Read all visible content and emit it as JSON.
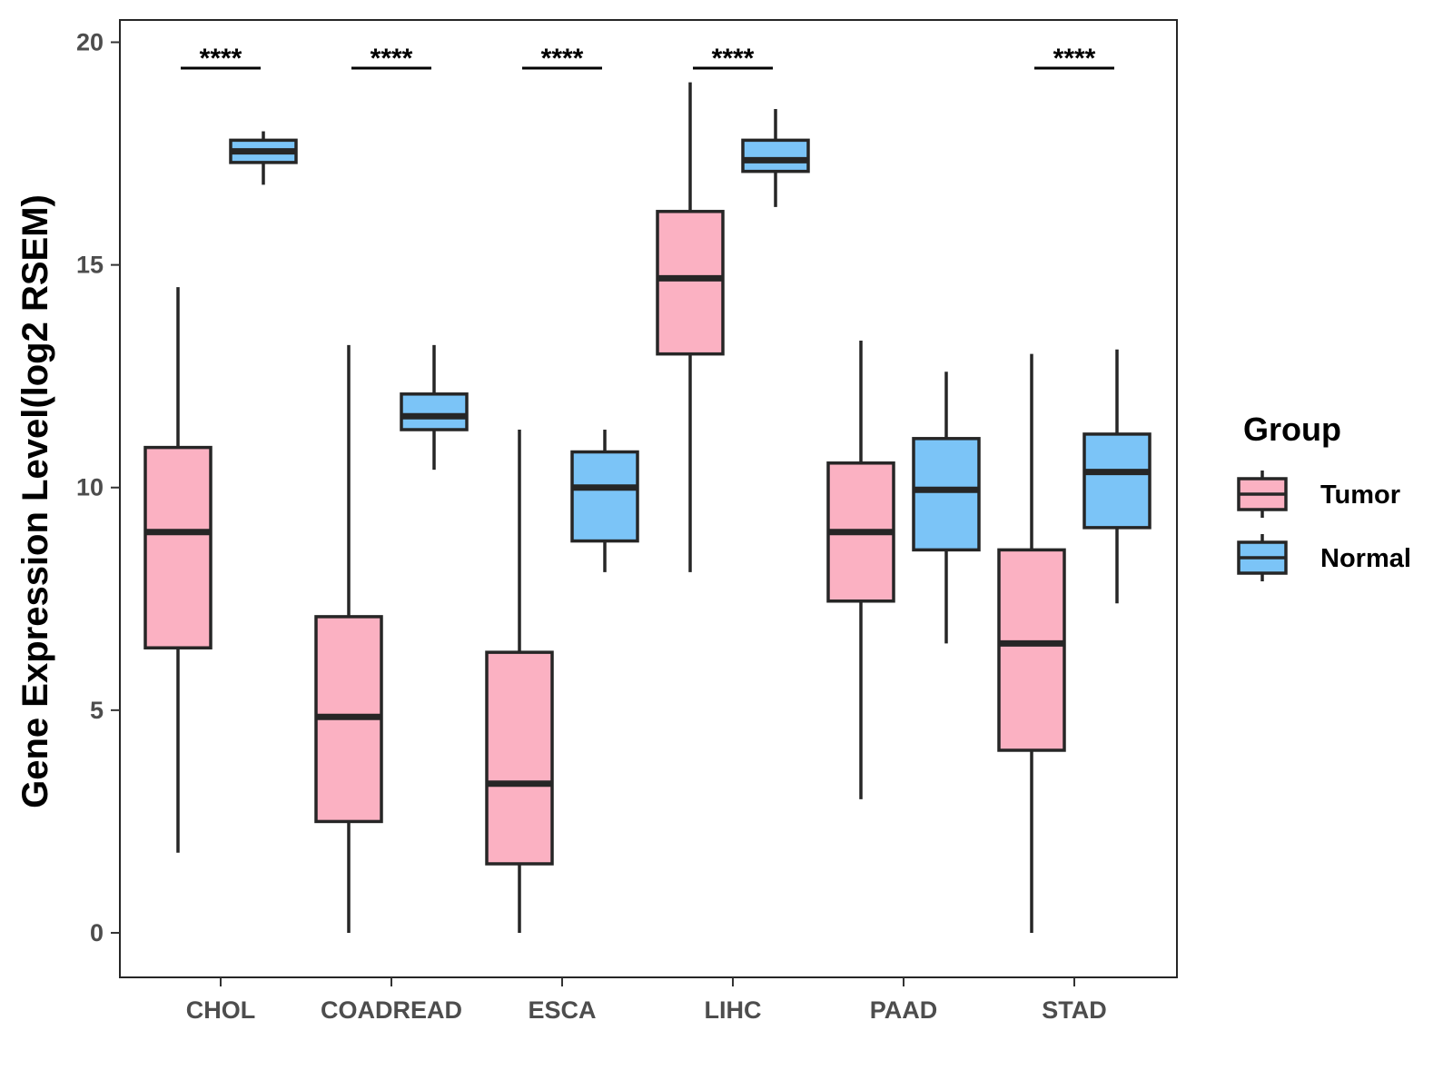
{
  "chart_data": {
    "type": "boxplot",
    "title": "",
    "xlabel": "",
    "ylabel": "Gene Expression Level(log2 RSEM)",
    "ylim": [
      -1,
      20.5
    ],
    "yticks": [
      0,
      5,
      10,
      15,
      20
    ],
    "categories": [
      "CHOL",
      "COADREAD",
      "ESCA",
      "LIHC",
      "PAAD",
      "STAD"
    ],
    "series": [
      {
        "name": "Tumor",
        "color": "#FBB1C2",
        "boxes": [
          {
            "min": 1.8,
            "q1": 6.4,
            "median": 9.0,
            "q3": 10.9,
            "max": 14.5
          },
          {
            "min": 0.0,
            "q1": 2.5,
            "median": 4.85,
            "q3": 7.1,
            "max": 13.2
          },
          {
            "min": 0.0,
            "q1": 1.55,
            "median": 3.35,
            "q3": 6.3,
            "max": 11.3
          },
          {
            "min": 8.1,
            "q1": 13.0,
            "median": 14.7,
            "q3": 16.2,
            "max": 19.1
          },
          {
            "min": 3.0,
            "q1": 7.45,
            "median": 9.0,
            "q3": 10.55,
            "max": 13.3
          },
          {
            "min": 0.0,
            "q1": 4.1,
            "median": 6.5,
            "q3": 8.6,
            "max": 13.0
          }
        ]
      },
      {
        "name": "Normal",
        "color": "#7BC4F7",
        "boxes": [
          {
            "min": 16.8,
            "q1": 17.3,
            "median": 17.55,
            "q3": 17.8,
            "max": 18.0
          },
          {
            "min": 10.4,
            "q1": 11.3,
            "median": 11.6,
            "q3": 12.1,
            "max": 13.2
          },
          {
            "min": 8.1,
            "q1": 8.8,
            "median": 10.0,
            "q3": 10.8,
            "max": 11.3
          },
          {
            "min": 16.3,
            "q1": 17.1,
            "median": 17.35,
            "q3": 17.8,
            "max": 18.5
          },
          {
            "min": 6.5,
            "q1": 8.6,
            "median": 9.95,
            "q3": 11.1,
            "max": 12.6
          },
          {
            "min": 7.4,
            "q1": 9.1,
            "median": 10.35,
            "q3": 11.2,
            "max": 13.1
          }
        ]
      }
    ],
    "significance": [
      {
        "category": "CHOL",
        "label": "****"
      },
      {
        "category": "COADREAD",
        "label": "****"
      },
      {
        "category": "ESCA",
        "label": "****"
      },
      {
        "category": "LIHC",
        "label": "****"
      },
      {
        "category": "PAAD",
        "label": ""
      },
      {
        "category": "STAD",
        "label": "****"
      }
    ],
    "legend": {
      "title": "Group",
      "position": "right",
      "items": [
        "Tumor",
        "Normal"
      ]
    },
    "grid": false,
    "box_edge_color": "#262626"
  }
}
